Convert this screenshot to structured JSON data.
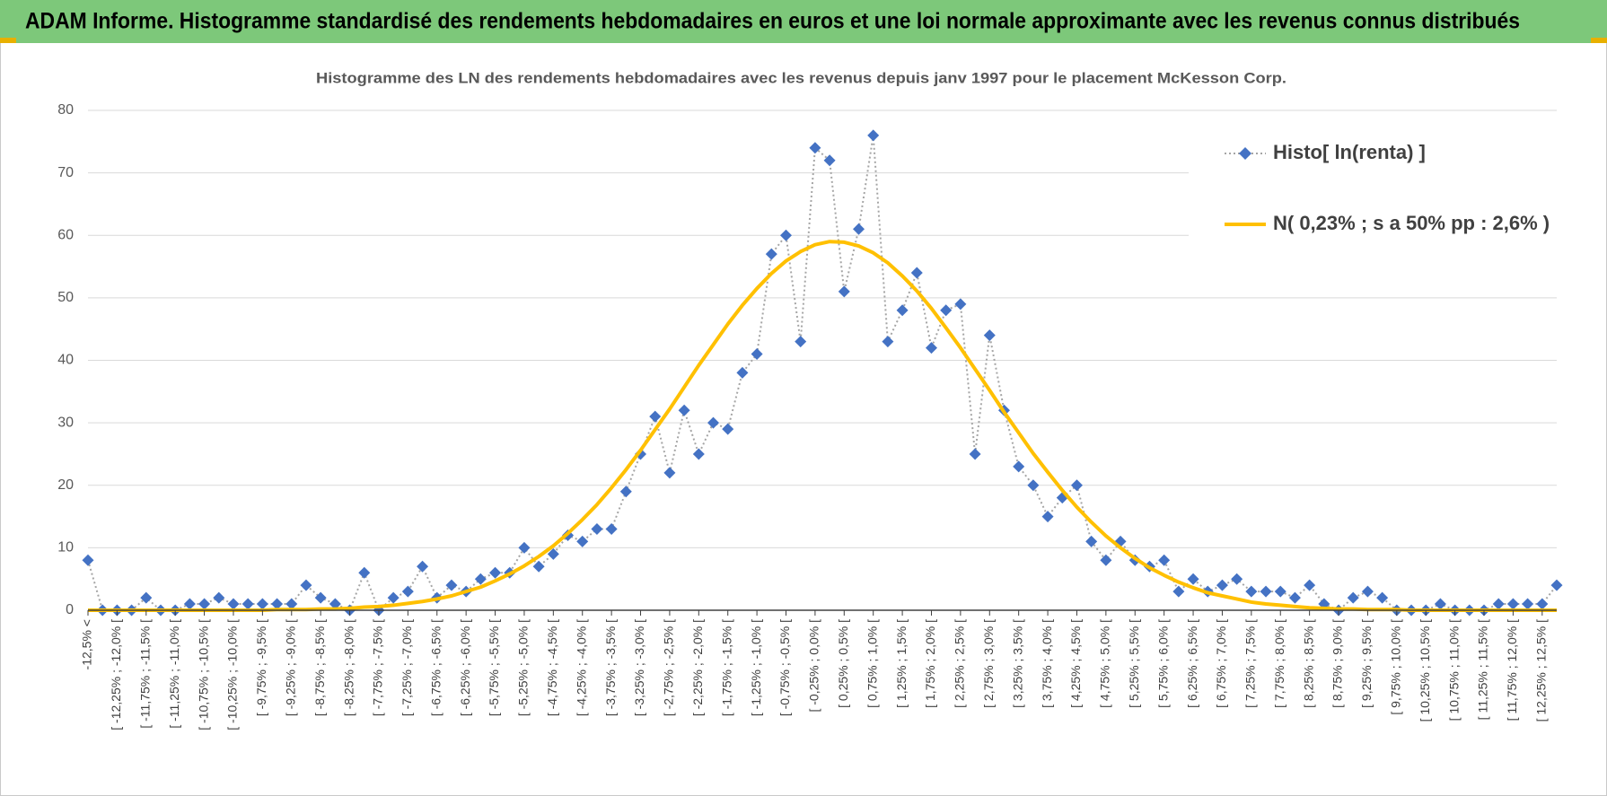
{
  "chart_data": {
    "type": "line",
    "title": "ADAM Informe. Histogramme standardisé des rendements hebdomadaires en euros et une loi normale approximante avec les revenus connus distribués",
    "subtitle": "Histogramme des LN des rendements hebdomadaires avec les revenus depuis janv 1997 pour le placement McKesson Corp.",
    "categories": [
      "-12,5% <",
      null,
      "[ -12,25% ; -12,0% [",
      null,
      "[ -11,75% ; -11,5% [",
      null,
      "[ -11,25% ; -11,0% [",
      null,
      "[ -10,75% ; -10,5% [",
      null,
      "[ -10,25% ; -10,0% [",
      null,
      "[ -9,75% ; -9,5% [",
      null,
      "[ -9,25% ; -9,0% [",
      null,
      "[ -8,75% ; -8,5% [",
      null,
      "[ -8,25% ; -8,0% [",
      null,
      "[ -7,75% ; -7,5% [",
      null,
      "[ -7,25% ; -7,0% [",
      null,
      "[ -6,75% ; -6,5% [",
      null,
      "[ -6,25% ; -6,0% [",
      null,
      "[ -5,75% ; -5,5% [",
      null,
      "[ -5,25% ; -5,0% [",
      null,
      "[ -4,75% ; -4,5% [",
      null,
      "[ -4,25% ; -4,0% [",
      null,
      "[ -3,75% ; -3,5% [",
      null,
      "[ -3,25% ; -3,0% [",
      null,
      "[ -2,75% ; -2,5% [",
      null,
      "[ -2,25% ; -2,0% [",
      null,
      "[ -1,75% ; -1,5% [",
      null,
      "[ -1,25% ; -1,0% [",
      null,
      "[ -0,75% ; -0,5% [",
      null,
      "[ -0,25% ; 0,0% [",
      null,
      "[ 0,25% ; 0,5% [",
      null,
      "[ 0,75% ; 1,0% [",
      null,
      "[ 1,25% ; 1,5% [",
      null,
      "[ 1,75% ; 2,0% [",
      null,
      "[ 2,25% ; 2,5% [",
      null,
      "[ 2,75% ; 3,0% [",
      null,
      "[ 3,25% ; 3,5% [",
      null,
      "[ 3,75% ; 4,0% [",
      null,
      "[ 4,25% ; 4,5% [",
      null,
      "[ 4,75% ; 5,0% [",
      null,
      "[ 5,25% ; 5,5% [",
      null,
      "[ 5,75% ; 6,0% [",
      null,
      "[ 6,25% ; 6,5% [",
      null,
      "[ 6,75% ; 7,0% [",
      null,
      "[ 7,25% ; 7,5% [",
      null,
      "[ 7,75% ; 8,0% [",
      null,
      "[ 8,25% ; 8,5% [",
      null,
      "[ 8,75% ; 9,0% [",
      null,
      "[ 9,25% ; 9,5% [",
      null,
      "[ 9,75% ; 10,0% [",
      null,
      "[ 10,25% ; 10,5% [",
      null,
      "[ 10,75% ; 11,0% [",
      null,
      "[ 11,25% ; 11,5% [",
      null,
      "[ 11,75% ; 12,0% [",
      null,
      "[ 12,25% ; 12,5% [",
      null
    ],
    "series": [
      {
        "name": "Histo[ ln(renta) ]",
        "color": "#4472c4",
        "line_color": "#a5a5a5",
        "marker": "diamond",
        "line_style": "dotted",
        "values": [
          8,
          0,
          0,
          0,
          2,
          0,
          0,
          1,
          1,
          2,
          1,
          1,
          1,
          1,
          1,
          4,
          2,
          1,
          0,
          6,
          0,
          2,
          3,
          7,
          2,
          4,
          3,
          5,
          6,
          6,
          10,
          7,
          9,
          12,
          11,
          13,
          13,
          19,
          25,
          31,
          22,
          32,
          25,
          30,
          29,
          38,
          41,
          57,
          60,
          43,
          74,
          72,
          51,
          61,
          76,
          43,
          48,
          54,
          42,
          48,
          49,
          25,
          44,
          32,
          23,
          20,
          15,
          18,
          20,
          11,
          8,
          11,
          8,
          7,
          8,
          3,
          5,
          3,
          4,
          5,
          3,
          3,
          3,
          2,
          4,
          1,
          0,
          2,
          3,
          2,
          0,
          0,
          0,
          1,
          0,
          0,
          0,
          1,
          1,
          1,
          1,
          4
        ]
      },
      {
        "name": "N( 0,23% ; s a 50% pp : 2,6% )",
        "color": "#ffc000",
        "line_style": "solid",
        "values": [
          0,
          0,
          0,
          0,
          0,
          0,
          0,
          0,
          0,
          0,
          0,
          0,
          0,
          0.1,
          0.1,
          0.1,
          0.2,
          0.2,
          0.3,
          0.5,
          0.6,
          0.8,
          1.1,
          1.4,
          1.8,
          2.3,
          3.0,
          3.7,
          4.7,
          5.8,
          7.1,
          8.6,
          10.3,
          12.3,
          14.5,
          16.9,
          19.6,
          22.5,
          25.6,
          28.9,
          32.2,
          35.7,
          39.2,
          42.5,
          45.8,
          48.8,
          51.5,
          53.9,
          55.9,
          57.4,
          58.5,
          59.0,
          58.9,
          58.3,
          57.2,
          55.6,
          53.5,
          51.1,
          48.3,
          45.2,
          42.0,
          38.6,
          35.2,
          31.7,
          28.4,
          25.1,
          22.1,
          19.2,
          16.5,
          14.1,
          11.9,
          10.0,
          8.3,
          6.8,
          5.6,
          4.5,
          3.6,
          2.8,
          2.3,
          1.8,
          1.3,
          1.0,
          0.8,
          0.6,
          0.4,
          0.3,
          0.2,
          0.2,
          0.1,
          0.1,
          0.1,
          0,
          0,
          0,
          0,
          0,
          0,
          0,
          0,
          0,
          0,
          0
        ]
      }
    ],
    "ylim": [
      0,
      80
    ],
    "yticks": [
      0,
      10,
      20,
      30,
      40,
      50,
      60,
      70,
      80
    ],
    "grid": true,
    "legend": "upper right"
  }
}
